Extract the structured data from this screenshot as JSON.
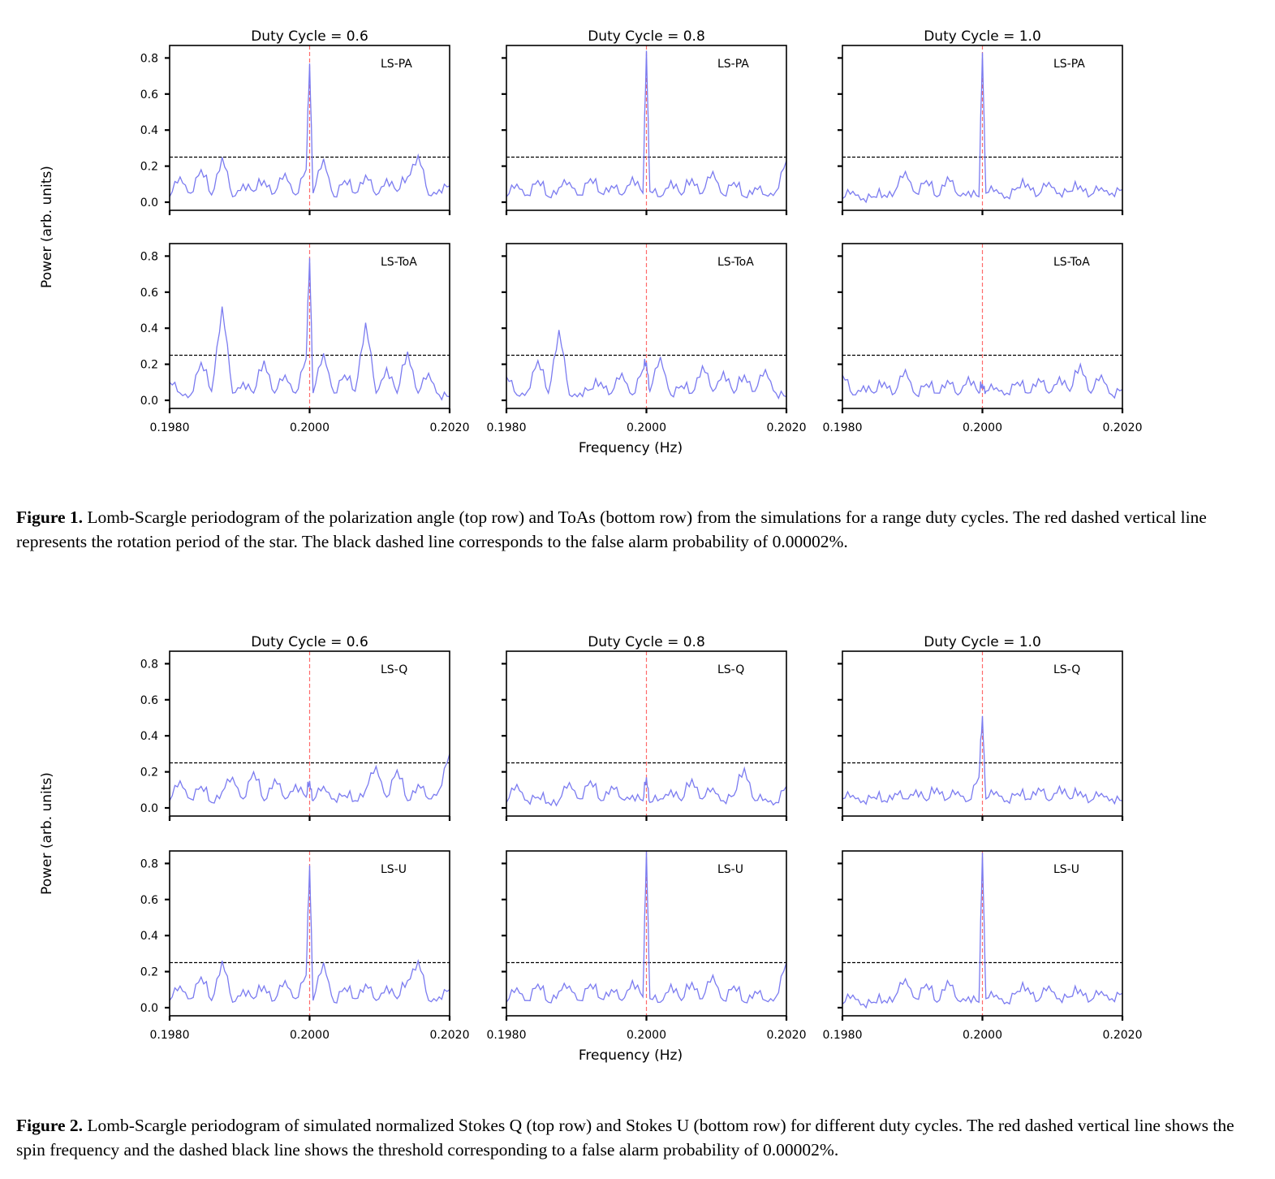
{
  "figures": [
    {
      "caption_label": "Figure 1.",
      "caption_text": " Lomb-Scargle periodogram of the polarization angle (top row) and ToAs (bottom row) from the simulations for a range duty cycles. The red dashed vertical line represents the rotation period of the star. The black dashed line corresponds to the false alarm probability of 0.00002%.",
      "ylabel": "Power (arb. units)",
      "xlabel": "Frequency (Hz)",
      "columns": [
        "Duty Cycle = 0.6",
        "Duty Cycle = 0.8",
        "Duty Cycle = 1.0"
      ],
      "rows": [
        "LS-PA",
        "LS-ToA"
      ],
      "yticks": [
        "0.0",
        "0.2",
        "0.4",
        "0.6",
        "0.8"
      ],
      "xticks": [
        "0.1980",
        "0.2000",
        "0.2020"
      ]
    },
    {
      "caption_label": "Figure 2.",
      "caption_text": " Lomb-Scargle periodogram of simulated normalized Stokes Q (top row) and Stokes U (bottom row) for different duty cycles. The red dashed vertical line shows the spin frequency and the dashed black line shows the threshold corresponding to a false alarm probability of 0.00002%.",
      "ylabel": "Power (arb. units)",
      "xlabel": "Frequency (Hz)",
      "columns": [
        "Duty Cycle = 0.6",
        "Duty Cycle = 0.8",
        "Duty Cycle = 1.0"
      ],
      "rows": [
        "LS-Q",
        "LS-U"
      ],
      "yticks": [
        "0.0",
        "0.2",
        "0.4",
        "0.6",
        "0.8"
      ],
      "xticks": [
        "0.1980",
        "0.2000",
        "0.2020"
      ]
    }
  ],
  "chart_data": [
    {
      "figure": 1,
      "row": 0,
      "col": 0,
      "type": "line",
      "label": "LS-PA",
      "xlim": [
        0.198,
        0.202
      ],
      "ylim": [
        0.0,
        0.9
      ],
      "spin_frequency": 0.2,
      "fap_threshold": 0.25,
      "line_color": "#7b7bf0",
      "spin_line_color": "#ff6b6b",
      "x": [
        0.198,
        0.19815,
        0.1983,
        0.19845,
        0.1986,
        0.19875,
        0.1989,
        0.19905,
        0.1992,
        0.19935,
        0.1995,
        0.19965,
        0.1998,
        0.19995,
        0.2,
        0.20005,
        0.2002,
        0.20035,
        0.2005,
        0.20065,
        0.2008,
        0.20095,
        0.2011,
        0.20125,
        0.2014,
        0.20155,
        0.2017,
        0.20185,
        0.202
      ],
      "y": [
        0.03,
        0.14,
        0.05,
        0.18,
        0.04,
        0.25,
        0.03,
        0.1,
        0.06,
        0.12,
        0.05,
        0.16,
        0.04,
        0.18,
        0.77,
        0.05,
        0.24,
        0.03,
        0.12,
        0.05,
        0.15,
        0.04,
        0.13,
        0.06,
        0.14,
        0.26,
        0.04,
        0.07,
        0.09
      ]
    },
    {
      "figure": 1,
      "row": 0,
      "col": 1,
      "type": "line",
      "label": "LS-PA",
      "xlim": [
        0.198,
        0.202
      ],
      "ylim": [
        0.0,
        0.9
      ],
      "spin_frequency": 0.2,
      "fap_threshold": 0.25,
      "line_color": "#7b7bf0",
      "spin_line_color": "#ff6b6b",
      "x": [
        0.198,
        0.19815,
        0.1983,
        0.19845,
        0.1986,
        0.19875,
        0.1989,
        0.19905,
        0.1992,
        0.19935,
        0.1995,
        0.19965,
        0.1998,
        0.19995,
        0.2,
        0.20005,
        0.2002,
        0.20035,
        0.2005,
        0.20065,
        0.2008,
        0.20095,
        0.2011,
        0.20125,
        0.2014,
        0.20155,
        0.2017,
        0.20185,
        0.202
      ],
      "y": [
        0.03,
        0.1,
        0.04,
        0.12,
        0.03,
        0.08,
        0.11,
        0.04,
        0.13,
        0.05,
        0.09,
        0.04,
        0.14,
        0.05,
        0.84,
        0.06,
        0.03,
        0.12,
        0.04,
        0.13,
        0.05,
        0.17,
        0.04,
        0.11,
        0.03,
        0.08,
        0.04,
        0.06,
        0.23
      ]
    },
    {
      "figure": 1,
      "row": 0,
      "col": 2,
      "type": "line",
      "label": "LS-PA",
      "xlim": [
        0.198,
        0.202
      ],
      "ylim": [
        0.0,
        0.9
      ],
      "spin_frequency": 0.2,
      "fap_threshold": 0.25,
      "line_color": "#7b7bf0",
      "spin_line_color": "#ff6b6b",
      "x": [
        0.198,
        0.19815,
        0.1983,
        0.19845,
        0.1986,
        0.19875,
        0.1989,
        0.19905,
        0.1992,
        0.19935,
        0.1995,
        0.19965,
        0.1998,
        0.19995,
        0.2,
        0.20005,
        0.2002,
        0.20035,
        0.2005,
        0.20065,
        0.2008,
        0.20095,
        0.2011,
        0.20125,
        0.2014,
        0.20155,
        0.2017,
        0.20185,
        0.202
      ],
      "y": [
        0.02,
        0.06,
        0.02,
        0.03,
        0.04,
        0.06,
        0.17,
        0.05,
        0.12,
        0.03,
        0.14,
        0.04,
        0.06,
        0.03,
        0.83,
        0.05,
        0.07,
        0.03,
        0.08,
        0.1,
        0.04,
        0.11,
        0.05,
        0.06,
        0.09,
        0.04,
        0.08,
        0.05,
        0.07
      ]
    },
    {
      "figure": 1,
      "row": 1,
      "col": 0,
      "type": "line",
      "label": "LS-ToA",
      "xlim": [
        0.198,
        0.202
      ],
      "ylim": [
        0.0,
        0.9
      ],
      "spin_frequency": 0.2,
      "fap_threshold": 0.25,
      "line_color": "#7b7bf0",
      "spin_line_color": "#ff6b6b",
      "x": [
        0.198,
        0.19815,
        0.1983,
        0.19845,
        0.1986,
        0.19875,
        0.1989,
        0.19905,
        0.1992,
        0.19935,
        0.1995,
        0.19965,
        0.1998,
        0.19995,
        0.2,
        0.20005,
        0.2002,
        0.20035,
        0.2005,
        0.20065,
        0.2008,
        0.20095,
        0.2011,
        0.20125,
        0.2014,
        0.20155,
        0.2017,
        0.20185,
        0.202
      ],
      "y": [
        0.1,
        0.04,
        0.03,
        0.21,
        0.05,
        0.52,
        0.04,
        0.1,
        0.04,
        0.22,
        0.04,
        0.14,
        0.04,
        0.23,
        0.79,
        0.04,
        0.26,
        0.04,
        0.14,
        0.05,
        0.43,
        0.04,
        0.18,
        0.04,
        0.27,
        0.04,
        0.15,
        0.03,
        0.02
      ]
    },
    {
      "figure": 1,
      "row": 1,
      "col": 1,
      "type": "line",
      "label": "LS-ToA",
      "xlim": [
        0.198,
        0.202
      ],
      "ylim": [
        0.0,
        0.9
      ],
      "spin_frequency": 0.2,
      "fap_threshold": 0.25,
      "line_color": "#7b7bf0",
      "spin_line_color": "#ff6b6b",
      "x": [
        0.198,
        0.19815,
        0.1983,
        0.19845,
        0.1986,
        0.19875,
        0.1989,
        0.19905,
        0.1992,
        0.19935,
        0.1995,
        0.19965,
        0.1998,
        0.19995,
        0.2,
        0.20005,
        0.2002,
        0.20035,
        0.2005,
        0.20065,
        0.2008,
        0.20095,
        0.2011,
        0.20125,
        0.2014,
        0.20155,
        0.2017,
        0.20185,
        0.202
      ],
      "y": [
        0.13,
        0.03,
        0.05,
        0.22,
        0.04,
        0.39,
        0.03,
        0.04,
        0.06,
        0.1,
        0.04,
        0.15,
        0.03,
        0.17,
        0.21,
        0.05,
        0.24,
        0.03,
        0.08,
        0.04,
        0.19,
        0.05,
        0.16,
        0.04,
        0.14,
        0.05,
        0.17,
        0.04,
        0.02
      ]
    },
    {
      "figure": 1,
      "row": 1,
      "col": 2,
      "type": "line",
      "label": "LS-ToA",
      "xlim": [
        0.198,
        0.202
      ],
      "ylim": [
        0.0,
        0.9
      ],
      "spin_frequency": 0.2,
      "fap_threshold": 0.25,
      "line_color": "#7b7bf0",
      "spin_line_color": "#ff6b6b",
      "x": [
        0.198,
        0.19815,
        0.1983,
        0.19845,
        0.1986,
        0.19875,
        0.1989,
        0.19905,
        0.1992,
        0.19935,
        0.1995,
        0.19965,
        0.1998,
        0.19995,
        0.2,
        0.20005,
        0.2002,
        0.20035,
        0.2005,
        0.20065,
        0.2008,
        0.20095,
        0.2011,
        0.20125,
        0.2014,
        0.20155,
        0.2017,
        0.20185,
        0.202
      ],
      "y": [
        0.14,
        0.03,
        0.08,
        0.04,
        0.1,
        0.04,
        0.17,
        0.03,
        0.09,
        0.04,
        0.11,
        0.03,
        0.13,
        0.04,
        0.09,
        0.05,
        0.07,
        0.04,
        0.1,
        0.04,
        0.12,
        0.04,
        0.13,
        0.05,
        0.2,
        0.04,
        0.14,
        0.03,
        0.06
      ]
    },
    {
      "figure": 2,
      "row": 0,
      "col": 0,
      "type": "line",
      "label": "LS-Q",
      "xlim": [
        0.198,
        0.202
      ],
      "ylim": [
        0.0,
        0.9
      ],
      "spin_frequency": 0.2,
      "fap_threshold": 0.25,
      "line_color": "#7b7bf0",
      "spin_line_color": "#ff6b6b",
      "x": [
        0.198,
        0.19815,
        0.1983,
        0.19845,
        0.1986,
        0.19875,
        0.1989,
        0.19905,
        0.1992,
        0.19935,
        0.1995,
        0.19965,
        0.1998,
        0.19995,
        0.2,
        0.20005,
        0.2002,
        0.20035,
        0.2005,
        0.20065,
        0.2008,
        0.20095,
        0.2011,
        0.20125,
        0.2014,
        0.20155,
        0.2017,
        0.20185,
        0.202
      ],
      "y": [
        0.04,
        0.15,
        0.05,
        0.12,
        0.03,
        0.09,
        0.17,
        0.05,
        0.2,
        0.04,
        0.16,
        0.05,
        0.13,
        0.06,
        0.15,
        0.04,
        0.12,
        0.05,
        0.07,
        0.04,
        0.1,
        0.23,
        0.06,
        0.21,
        0.04,
        0.13,
        0.05,
        0.1,
        0.3
      ]
    },
    {
      "figure": 2,
      "row": 0,
      "col": 1,
      "type": "line",
      "label": "LS-Q",
      "xlim": [
        0.198,
        0.202
      ],
      "ylim": [
        0.0,
        0.9
      ],
      "spin_frequency": 0.2,
      "fap_threshold": 0.25,
      "line_color": "#7b7bf0",
      "spin_line_color": "#ff6b6b",
      "x": [
        0.198,
        0.19815,
        0.1983,
        0.19845,
        0.1986,
        0.19875,
        0.1989,
        0.19905,
        0.1992,
        0.19935,
        0.1995,
        0.19965,
        0.1998,
        0.19995,
        0.2,
        0.20005,
        0.2002,
        0.20035,
        0.2005,
        0.20065,
        0.2008,
        0.20095,
        0.2011,
        0.20125,
        0.2014,
        0.20155,
        0.2017,
        0.20185,
        0.202
      ],
      "y": [
        0.03,
        0.13,
        0.04,
        0.06,
        0.03,
        0.04,
        0.14,
        0.05,
        0.15,
        0.04,
        0.12,
        0.05,
        0.07,
        0.04,
        0.17,
        0.03,
        0.05,
        0.1,
        0.04,
        0.16,
        0.05,
        0.11,
        0.04,
        0.07,
        0.22,
        0.04,
        0.05,
        0.03,
        0.12
      ]
    },
    {
      "figure": 2,
      "row": 0,
      "col": 2,
      "type": "line",
      "label": "LS-Q",
      "xlim": [
        0.198,
        0.202
      ],
      "ylim": [
        0.0,
        0.9
      ],
      "spin_frequency": 0.2,
      "fap_threshold": 0.25,
      "line_color": "#7b7bf0",
      "spin_line_color": "#ff6b6b",
      "x": [
        0.198,
        0.19815,
        0.1983,
        0.19845,
        0.1986,
        0.19875,
        0.1989,
        0.19905,
        0.1992,
        0.19935,
        0.1995,
        0.19965,
        0.1998,
        0.19995,
        0.2,
        0.20005,
        0.2002,
        0.20035,
        0.2005,
        0.20065,
        0.2008,
        0.20095,
        0.2011,
        0.20125,
        0.2014,
        0.20155,
        0.2017,
        0.20185,
        0.202
      ],
      "y": [
        0.05,
        0.07,
        0.04,
        0.06,
        0.04,
        0.08,
        0.05,
        0.1,
        0.04,
        0.11,
        0.05,
        0.09,
        0.04,
        0.17,
        0.51,
        0.05,
        0.09,
        0.04,
        0.08,
        0.05,
        0.11,
        0.04,
        0.12,
        0.05,
        0.09,
        0.04,
        0.08,
        0.05,
        0.04
      ]
    },
    {
      "figure": 2,
      "row": 1,
      "col": 0,
      "type": "line",
      "label": "LS-U",
      "xlim": [
        0.198,
        0.202
      ],
      "ylim": [
        0.0,
        0.9
      ],
      "spin_frequency": 0.2,
      "fap_threshold": 0.25,
      "line_color": "#7b7bf0",
      "spin_line_color": "#ff6b6b",
      "x": [
        0.198,
        0.19815,
        0.1983,
        0.19845,
        0.1986,
        0.19875,
        0.1989,
        0.19905,
        0.1992,
        0.19935,
        0.1995,
        0.19965,
        0.1998,
        0.19995,
        0.2,
        0.20005,
        0.2002,
        0.20035,
        0.2005,
        0.20065,
        0.2008,
        0.20095,
        0.2011,
        0.20125,
        0.2014,
        0.20155,
        0.2017,
        0.20185,
        0.202
      ],
      "y": [
        0.04,
        0.12,
        0.05,
        0.17,
        0.04,
        0.26,
        0.03,
        0.1,
        0.05,
        0.12,
        0.04,
        0.15,
        0.05,
        0.18,
        0.79,
        0.04,
        0.25,
        0.03,
        0.11,
        0.05,
        0.13,
        0.04,
        0.12,
        0.05,
        0.15,
        0.26,
        0.04,
        0.06,
        0.1
      ]
    },
    {
      "figure": 2,
      "row": 1,
      "col": 1,
      "type": "line",
      "label": "LS-U",
      "xlim": [
        0.198,
        0.202
      ],
      "ylim": [
        0.0,
        0.9
      ],
      "spin_frequency": 0.2,
      "fap_threshold": 0.25,
      "line_color": "#7b7bf0",
      "spin_line_color": "#ff6b6b",
      "x": [
        0.198,
        0.19815,
        0.1983,
        0.19845,
        0.1986,
        0.19875,
        0.1989,
        0.19905,
        0.1992,
        0.19935,
        0.1995,
        0.19965,
        0.1998,
        0.19995,
        0.2,
        0.20005,
        0.2002,
        0.20035,
        0.2005,
        0.20065,
        0.2008,
        0.20095,
        0.2011,
        0.20125,
        0.2014,
        0.20155,
        0.2017,
        0.20185,
        0.202
      ],
      "y": [
        0.03,
        0.11,
        0.04,
        0.13,
        0.03,
        0.09,
        0.12,
        0.04,
        0.13,
        0.05,
        0.1,
        0.04,
        0.15,
        0.06,
        0.87,
        0.05,
        0.03,
        0.13,
        0.04,
        0.14,
        0.05,
        0.18,
        0.04,
        0.12,
        0.03,
        0.09,
        0.04,
        0.06,
        0.25
      ]
    },
    {
      "figure": 2,
      "row": 1,
      "col": 2,
      "type": "line",
      "label": "LS-U",
      "xlim": [
        0.198,
        0.202
      ],
      "ylim": [
        0.0,
        0.9
      ],
      "spin_frequency": 0.2,
      "fap_threshold": 0.25,
      "line_color": "#7b7bf0",
      "spin_line_color": "#ff6b6b",
      "x": [
        0.198,
        0.19815,
        0.1983,
        0.19845,
        0.1986,
        0.19875,
        0.1989,
        0.19905,
        0.1992,
        0.19935,
        0.1995,
        0.19965,
        0.1998,
        0.19995,
        0.2,
        0.20005,
        0.2002,
        0.20035,
        0.2005,
        0.20065,
        0.2008,
        0.20095,
        0.2011,
        0.20125,
        0.2014,
        0.20155,
        0.2017,
        0.20185,
        0.202
      ],
      "y": [
        0.02,
        0.07,
        0.02,
        0.03,
        0.04,
        0.06,
        0.16,
        0.05,
        0.13,
        0.03,
        0.15,
        0.04,
        0.06,
        0.03,
        0.86,
        0.05,
        0.07,
        0.03,
        0.09,
        0.11,
        0.04,
        0.12,
        0.05,
        0.06,
        0.1,
        0.04,
        0.09,
        0.05,
        0.08
      ]
    }
  ]
}
